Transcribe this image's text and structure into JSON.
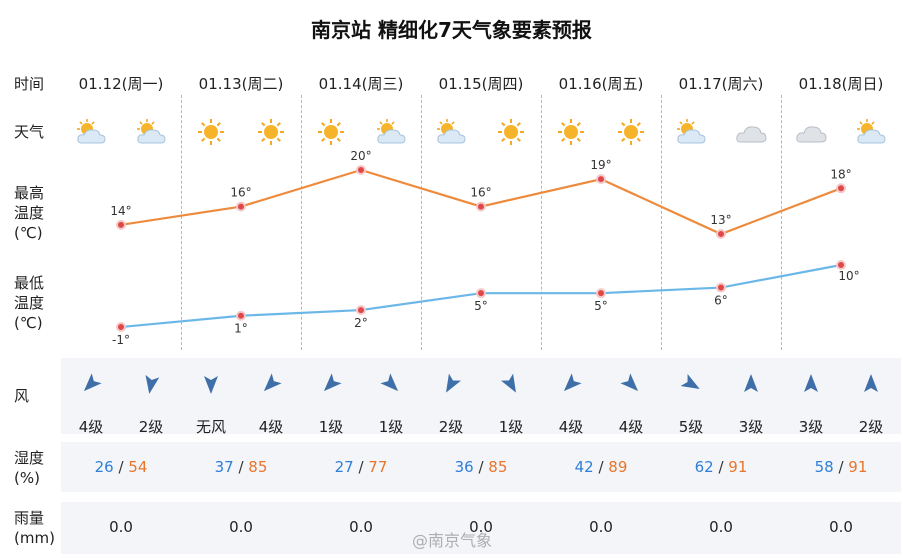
{
  "title": "南京站 精细化7天气象要素预报",
  "row_labels": {
    "time": "时间",
    "weather": "天气",
    "tmax": "最高\n温度\n(℃)",
    "tmin": "最低\n温度\n(℃)",
    "wind": "风",
    "humidity": "湿度\n(%)",
    "rain": "雨量\n(mm)"
  },
  "days": [
    {
      "date": "01.12(周一)",
      "icons": [
        "partly-cloudy-icon",
        "partly-cloudy-icon"
      ],
      "wind_dir": [
        135,
        100
      ],
      "wind": [
        "4级",
        "2级"
      ],
      "hum_lo": "26",
      "hum_hi": "54",
      "rain": "0.0"
    },
    {
      "date": "01.13(周二)",
      "icons": [
        "sun-icon",
        "sun-icon"
      ],
      "wind_dir": [
        90,
        135
      ],
      "wind": [
        "无风",
        "4级"
      ],
      "hum_lo": "37",
      "hum_hi": "85",
      "rain": "0.0"
    },
    {
      "date": "01.14(周三)",
      "icons": [
        "sun-icon",
        "partly-cloudy-icon"
      ],
      "wind_dir": [
        135,
        45
      ],
      "wind": [
        "1级",
        "1级"
      ],
      "hum_lo": "27",
      "hum_hi": "77",
      "rain": "0.0"
    },
    {
      "date": "01.15(周四)",
      "icons": [
        "partly-cloudy-icon",
        "sun-icon"
      ],
      "wind_dir": [
        120,
        60
      ],
      "wind": [
        "2级",
        "1级"
      ],
      "hum_lo": "36",
      "hum_hi": "85",
      "rain": "0.0"
    },
    {
      "date": "01.16(周五)",
      "icons": [
        "sun-icon",
        "sun-icon"
      ],
      "wind_dir": [
        135,
        45
      ],
      "wind": [
        "4级",
        "4级"
      ],
      "hum_lo": "42",
      "hum_hi": "89",
      "rain": "0.0"
    },
    {
      "date": "01.17(周六)",
      "icons": [
        "partly-cloudy-icon",
        "cloud-icon"
      ],
      "wind_dir": [
        30,
        -90
      ],
      "wind": [
        "5级",
        "3级"
      ],
      "hum_lo": "62",
      "hum_hi": "91",
      "rain": "0.0"
    },
    {
      "date": "01.18(周日)",
      "icons": [
        "cloud-icon",
        "partly-cloudy-icon"
      ],
      "wind_dir": [
        -90,
        -90
      ],
      "wind": [
        "3级",
        "2级"
      ],
      "hum_lo": "58",
      "hum_hi": "91",
      "rain": "0.0"
    }
  ],
  "chart_data": [
    {
      "type": "line",
      "series": [
        {
          "values": [
            14,
            16,
            20,
            16,
            19,
            13,
            18
          ],
          "labels": [
            "14°",
            "16°",
            "20°",
            "16°",
            "19°",
            "13°",
            "18°"
          ],
          "color": "#ee8a3c"
        }
      ],
      "ylim": [
        13,
        20
      ]
    },
    {
      "type": "line",
      "series": [
        {
          "values": [
            -1,
            1,
            2,
            5,
            5,
            6,
            10
          ],
          "labels": [
            "-1°",
            "1°",
            "2°",
            "5°",
            "5°",
            "6°",
            "10°"
          ],
          "color": "#6bb8e8"
        }
      ],
      "ylim": [
        -1,
        10
      ]
    }
  ],
  "watermark": "@南京气象",
  "colors": {
    "tmax": "#ee8a3c",
    "tmin": "#6bb8e8",
    "wind_arrow": "#3f6fa8",
    "hum_lo": "#2f7fd8",
    "hum_hi": "#e8752b"
  }
}
